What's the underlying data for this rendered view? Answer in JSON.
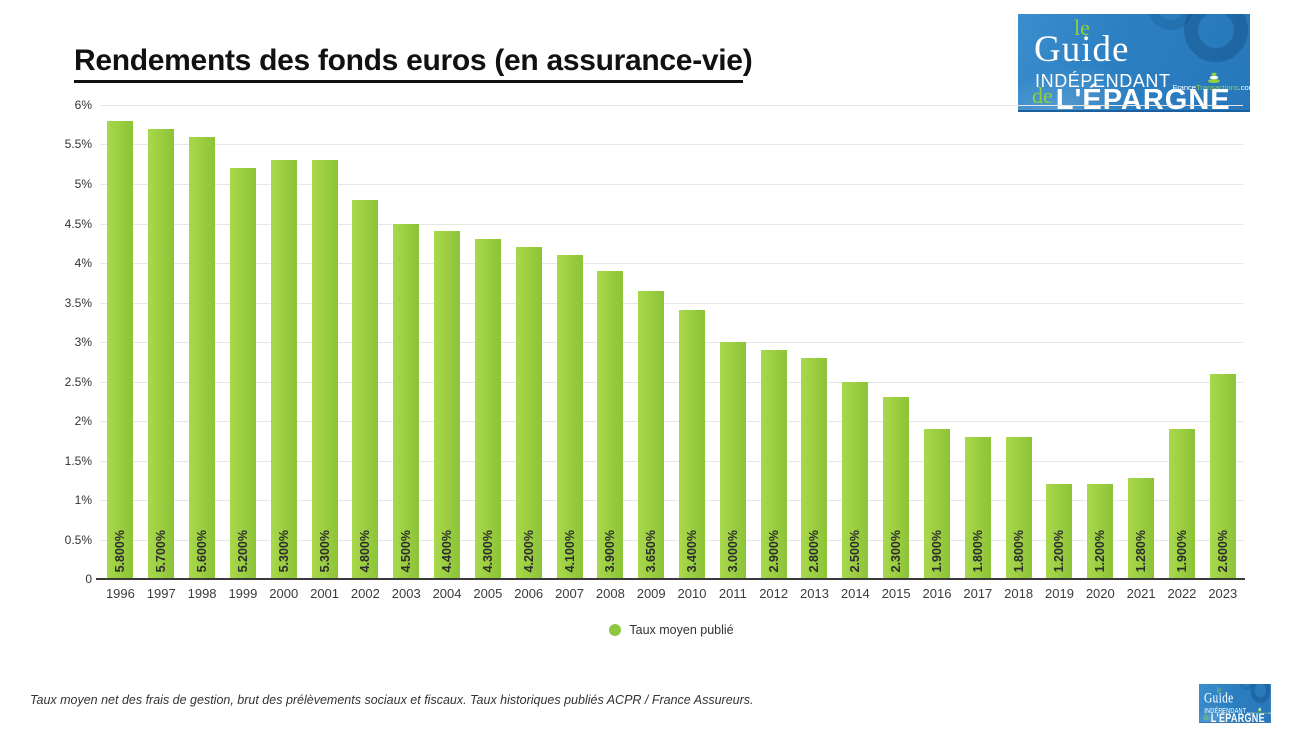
{
  "title": {
    "main": "Rendements des fonds euros (en assurance-vie",
    "suffix": ")"
  },
  "logo": {
    "le": "le",
    "guide": "Guide",
    "independant": "INDÉPENDANT",
    "de": "de",
    "epargne": "L'ÉPARGNE",
    "site_france": "France",
    "site_transactions": "Transactions",
    "site_com": ".com"
  },
  "chart_data": {
    "type": "bar",
    "title": "Rendements des fonds euros (en assurance-vie)",
    "categories": [
      "1996",
      "1997",
      "1998",
      "1999",
      "2000",
      "2001",
      "2002",
      "2003",
      "2004",
      "2005",
      "2006",
      "2007",
      "2008",
      "2009",
      "2010",
      "2011",
      "2012",
      "2013",
      "2014",
      "2015",
      "2016",
      "2017",
      "2018",
      "2019",
      "2020",
      "2021",
      "2022",
      "2023"
    ],
    "values": [
      5.8,
      5.7,
      5.6,
      5.2,
      5.3,
      5.3,
      4.8,
      4.5,
      4.4,
      4.3,
      4.2,
      4.1,
      3.9,
      3.65,
      3.4,
      3.0,
      2.9,
      2.8,
      2.5,
      2.3,
      1.9,
      1.8,
      1.8,
      1.2,
      1.2,
      1.28,
      1.9,
      2.6
    ],
    "bar_labels": [
      "5.800%",
      "5.700%",
      "5.600%",
      "5.200%",
      "5.300%",
      "5.300%",
      "4.800%",
      "4.500%",
      "4.400%",
      "4.300%",
      "4.200%",
      "4.100%",
      "3.900%",
      "3.650%",
      "3.400%",
      "3.000%",
      "2.900%",
      "2.800%",
      "2.500%",
      "2.300%",
      "1.900%",
      "1.800%",
      "1.800%",
      "1.200%",
      "1.200%",
      "1.280%",
      "1.900%",
      "2.600%"
    ],
    "xlabel": "",
    "ylabel": "",
    "ylim": [
      0,
      6
    ],
    "yticks": [
      "6%",
      "5.5%",
      "5%",
      "4.5%",
      "4%",
      "3.5%",
      "3%",
      "2.5%",
      "2%",
      "1.5%",
      "1%",
      "0.5%",
      "0"
    ],
    "grid": true,
    "legend_position": "bottom",
    "series_name": "Taux moyen publié"
  },
  "legend": {
    "label": "Taux moyen publié"
  },
  "footer": {
    "note": "Taux moyen net des frais de gestion, brut des prélèvements sociaux et fiscaux. Taux historiques publiés ACPR / France Assureurs."
  },
  "colors": {
    "bar_green": "#9bcb3d",
    "legend_green": "#8dc63f",
    "logo_blue": "#2b7fc1",
    "logo_accent_green": "#8fd13e",
    "grid": "#e6e6e6"
  }
}
